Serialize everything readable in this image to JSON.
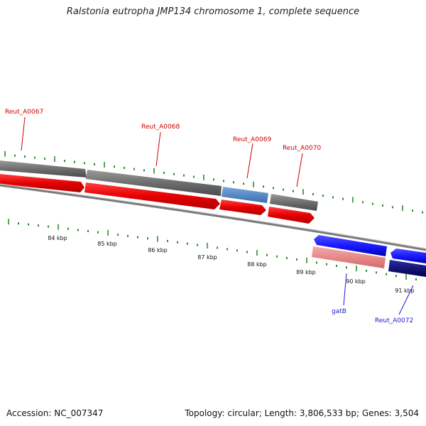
{
  "title": "Ralstonia eutropha JMP134 chromosome 1, complete sequence",
  "footer": {
    "accession": "Accession: NC_007347",
    "stats": "Topology: circular; Length: 3,806,533 bp; Genes: 3,504"
  },
  "scale_labels": [
    "84 kbp",
    "85 kbp",
    "86 kbp",
    "87 kbp",
    "88 kbp",
    "89 kbp",
    "90 kbp",
    "91 kbp"
  ],
  "gene_labels": {
    "reut_a0067": "Reut_A0067",
    "reut_a0068": "Reut_A0068",
    "reut_a0069": "Reut_A0069",
    "reut_a0070": "Reut_A0070",
    "gatb": "gatB",
    "reut_a0072": "Reut_A0072"
  },
  "colors": {
    "forward_cds": "#e60000",
    "reverse_cds": "#1a1aff",
    "gene_gray": "#6e6e6e",
    "highlight_blue": "#4f86c6",
    "pink": "#f08c8c",
    "navy": "#0a0a78",
    "tick_green": "#2e8b2e",
    "label_red": "#cc0000",
    "label_blue": "#1a1acc"
  }
}
